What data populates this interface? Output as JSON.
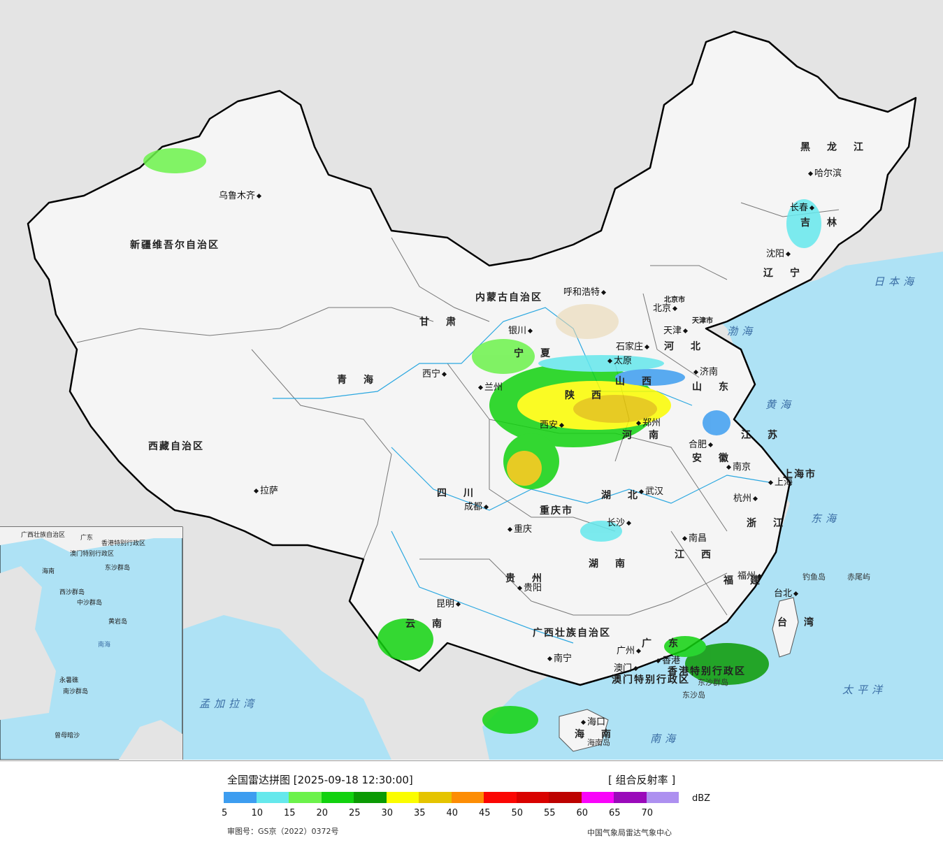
{
  "map": {
    "cities": [
      {
        "name": "乌鲁木齐",
        "side": "left"
      },
      {
        "name": "拉萨",
        "side": "right"
      },
      {
        "name": "西宁",
        "side": "left"
      },
      {
        "name": "兰州",
        "side": "right"
      },
      {
        "name": "银川",
        "side": "above"
      },
      {
        "name": "呼和浩特",
        "side": "left"
      },
      {
        "name": "北京",
        "side": "left"
      },
      {
        "name": "天津",
        "side": "left"
      },
      {
        "name": "石家庄",
        "side": "left"
      },
      {
        "name": "太原",
        "side": "right"
      },
      {
        "name": "济南",
        "side": "right"
      },
      {
        "name": "郑州",
        "side": "below"
      },
      {
        "name": "西安",
        "side": "left"
      },
      {
        "name": "成都",
        "side": "left"
      },
      {
        "name": "重庆",
        "side": "right"
      },
      {
        "name": "武汉",
        "side": "right"
      },
      {
        "name": "合肥",
        "side": "above"
      },
      {
        "name": "南京",
        "side": "right"
      },
      {
        "name": "上海",
        "side": "below"
      },
      {
        "name": "杭州",
        "side": "left"
      },
      {
        "name": "南昌",
        "side": "right"
      },
      {
        "name": "长沙",
        "side": "above"
      },
      {
        "name": "贵阳",
        "side": "below"
      },
      {
        "name": "昆明",
        "side": "above"
      },
      {
        "name": "南宁",
        "side": "right"
      },
      {
        "name": "广州",
        "side": "left"
      },
      {
        "name": "澳门",
        "side": "left"
      },
      {
        "name": "香港",
        "side": "right"
      },
      {
        "name": "福州",
        "side": "above"
      },
      {
        "name": "台北",
        "side": "above"
      },
      {
        "name": "海口",
        "side": "below"
      },
      {
        "name": "哈尔滨",
        "side": "right"
      },
      {
        "name": "长春",
        "side": "above"
      },
      {
        "name": "沈阳",
        "side": "above"
      }
    ],
    "provinces": [
      "新疆维吾尔自治区",
      "西藏自治区",
      "青海",
      "甘肃",
      "内蒙古自治区",
      "宁夏",
      "陕西",
      "山西",
      "河北",
      "河南",
      "山东",
      "四川",
      "重庆市",
      "湖北",
      "安徽",
      "江苏",
      "上海市",
      "浙江",
      "湖南",
      "江西",
      "福建",
      "贵州",
      "云南",
      "广西壮族自治区",
      "广东",
      "台湾",
      "海南",
      "黑龙江",
      "吉林",
      "辽宁",
      "北京市",
      "天津市",
      "香港特别行政区",
      "澳门特别行政区"
    ],
    "seas": [
      "日本海",
      "渤海",
      "黄海",
      "东海",
      "太平洋",
      "南海",
      "孟加拉湾"
    ],
    "islands": [
      "钓鱼岛",
      "赤尾屿",
      "东沙群岛",
      "东沙岛",
      "海南岛"
    ],
    "inset_labels": [
      "广西壮族自治区",
      "广东",
      "香港特别行政区",
      "澳门特别行政区",
      "东沙群岛",
      "海南",
      "西沙群岛",
      "中沙群岛",
      "黄岩岛",
      "南沙群岛",
      "永暑礁",
      "曾母暗沙",
      "南海"
    ],
    "colors": {
      "sea": "#aee2f5",
      "land_china": "#f2f2f2",
      "land_other": "#e4e4e4",
      "border": "#000000"
    }
  },
  "legend": {
    "title": "全国雷达拼图 [2025-09-18 12:30:00]",
    "product": "[ 组合反射率 ]",
    "unit": "dBZ",
    "colors": [
      "#3d9df0",
      "#65e8ec",
      "#6cf24b",
      "#12d20f",
      "#0b9a04",
      "#fbfd00",
      "#e5c400",
      "#fd8d05",
      "#fb0704",
      "#d90200",
      "#bd0200",
      "#f904fa",
      "#9a0aba",
      "#ad90f0"
    ],
    "ticks": [
      "5",
      "10",
      "15",
      "20",
      "25",
      "30",
      "35",
      "40",
      "45",
      "50",
      "55",
      "60",
      "65",
      "70"
    ],
    "approval": "审图号：GS京（2022）0372号",
    "source": "中国气象局雷达气象中心"
  }
}
